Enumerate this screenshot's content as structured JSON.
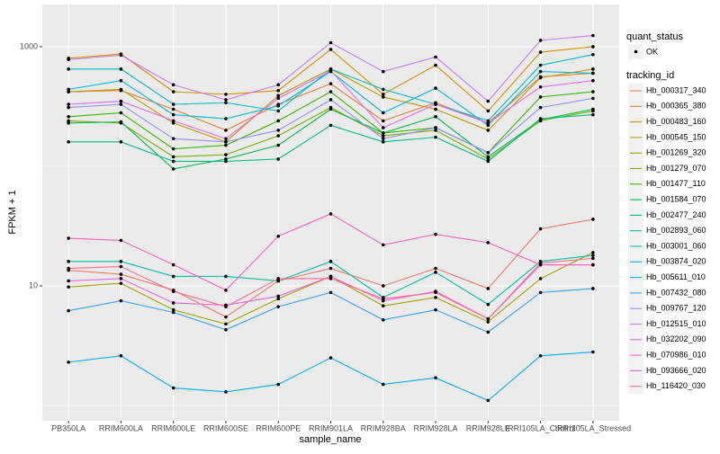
{
  "chart_data": {
    "type": "line",
    "x_label": "sample_name",
    "y_label": "FPKM + 1",
    "categories": [
      "PB350LA",
      "RRIM600LA",
      "RRIM600LE",
      "RRIM600SE",
      "RRIM600PE",
      "RRIM901LA",
      "RRIM928BA",
      "RRIM928LA",
      "RRIM928LE",
      "IRRI105LA_Control",
      "IRRI105LA_Stressed"
    ],
    "yscale": "log",
    "ylim": [
      0.745,
      2254
    ],
    "yticks": [
      10,
      1000
    ],
    "y_minor_grid": [
      1,
      100
    ],
    "grid": true,
    "point_color": "#000000",
    "panel_color": "#EBEBEB",
    "shape_legend": {
      "title": "quant_status",
      "entries": [
        "OK"
      ]
    },
    "legend_title": "tracking_id",
    "legend_position": "right",
    "series": [
      {
        "name": "Hb_000317_340",
        "color": "#F8766D",
        "values": [
          13.5,
          12.5,
          9.2,
          5.5,
          11,
          14,
          10,
          14,
          9.5,
          30,
          36
        ]
      },
      {
        "name": "Hb_000365_380",
        "color": "#EA8331",
        "values": [
          420,
          430,
          300,
          200,
          330,
          490,
          240,
          340,
          230,
          560,
          600
        ]
      },
      {
        "name": "Hb_000483_160",
        "color": "#D89000",
        "values": [
          800,
          870,
          420,
          400,
          430,
          950,
          400,
          700,
          290,
          900,
          1000
        ]
      },
      {
        "name": "Hb_000545_150",
        "color": "#C09B00",
        "values": [
          420,
          440,
          230,
          160,
          390,
          650,
          380,
          300,
          200,
          550,
          650
        ]
      },
      {
        "name": "Hb_001269_320",
        "color": "#A3A500",
        "values": [
          9.8,
          10.5,
          6.3,
          4.8,
          7.8,
          12,
          6.8,
          8,
          5,
          11.5,
          19
        ]
      },
      {
        "name": "Hb_001279_070",
        "color": "#7CAE00",
        "values": [
          240,
          230,
          120,
          125,
          180,
          310,
          180,
          200,
          115,
          240,
          290
        ]
      },
      {
        "name": "Hb_001477_110",
        "color": "#39B600",
        "values": [
          260,
          280,
          140,
          150,
          240,
          420,
          190,
          210,
          130,
          380,
          420
        ]
      },
      {
        "name": "Hb_001584_070",
        "color": "#00BB4E",
        "values": [
          230,
          235,
          95,
          115,
          150,
          300,
          190,
          260,
          120,
          245,
          300
        ]
      },
      {
        "name": "Hb_002477_240",
        "color": "#00BF7D",
        "values": [
          160,
          160,
          110,
          110,
          115,
          220,
          160,
          175,
          110,
          250,
          270
        ]
      },
      {
        "name": "Hb_002893_060",
        "color": "#00C1A3",
        "values": [
          16,
          16,
          12,
          12,
          11,
          16,
          8,
          13,
          7,
          16,
          18
        ]
      },
      {
        "name": "Hb_003001_060",
        "color": "#00BFC4",
        "values": [
          650,
          650,
          330,
          340,
          290,
          650,
          440,
          330,
          240,
          700,
          860
        ]
      },
      {
        "name": "Hb_003874_020",
        "color": "#00BAE0",
        "values": [
          440,
          520,
          270,
          250,
          320,
          620,
          280,
          450,
          220,
          620,
          600
        ]
      },
      {
        "name": "Hb_005611_010",
        "color": "#00B0F6",
        "values": [
          2.3,
          2.6,
          1.4,
          1.3,
          1.5,
          2.5,
          1.5,
          1.7,
          1.1,
          2.6,
          2.8
        ]
      },
      {
        "name": "Hb_007432_080",
        "color": "#35A2FF",
        "values": [
          6.2,
          7.5,
          6,
          4.3,
          6.7,
          8.8,
          5.2,
          6.3,
          4.1,
          8.8,
          9.5
        ]
      },
      {
        "name": "Hb_009767_120",
        "color": "#9590FF",
        "values": [
          310,
          330,
          170,
          160,
          200,
          360,
          170,
          210,
          130,
          310,
          370
        ]
      },
      {
        "name": "Hb_012515_010",
        "color": "#C77CFF",
        "values": [
          780,
          850,
          480,
          360,
          480,
          1080,
          620,
          820,
          350,
          1130,
          1240
        ]
      },
      {
        "name": "Hb_032202_090",
        "color": "#E76BF3",
        "values": [
          330,
          350,
          240,
          170,
          370,
          630,
          210,
          330,
          230,
          460,
          520
        ]
      },
      {
        "name": "Hb_070986_010",
        "color": "#FA62DB",
        "values": [
          11,
          11.5,
          7.2,
          6.9,
          8.2,
          12,
          7.5,
          9,
          5.3,
          15,
          15
        ]
      },
      {
        "name": "Hb_093666_020",
        "color": "#FF62BC",
        "values": [
          25,
          24,
          15,
          9.2,
          26,
          40,
          22,
          27,
          23,
          15,
          15
        ]
      },
      {
        "name": "Hb_116420_030",
        "color": "#FF6C91",
        "values": [
          14,
          14.5,
          9,
          6.7,
          11.5,
          11.5,
          7.8,
          8.8,
          5.3,
          15.5,
          17
        ]
      }
    ]
  }
}
